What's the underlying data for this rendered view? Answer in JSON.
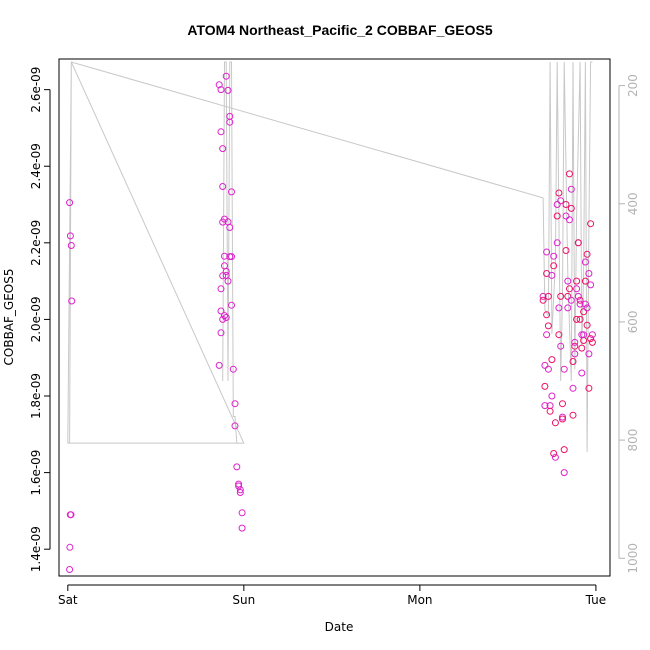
{
  "chart_data": {
    "type": "scatter",
    "title": "ATOM4 Northeast_Pacific_2 COBBAF_GEOS5",
    "xlabel": "Date",
    "ylabel": "COBBAF_GEOS5",
    "x_ticks": [
      {
        "label": "Sat",
        "day": 0
      },
      {
        "label": "Sun",
        "day": 1
      },
      {
        "label": "Mon",
        "day": 2
      },
      {
        "label": "Tue",
        "day": 3
      }
    ],
    "xlim_days": [
      -0.05,
      3.08
    ],
    "y_ticks": [
      {
        "label": "1.4e-09",
        "value": 1.4e-09
      },
      {
        "label": "1.6e-09",
        "value": 1.6e-09
      },
      {
        "label": "1.8e-09",
        "value": 1.8e-09
      },
      {
        "label": "2.0e-09",
        "value": 2e-09
      },
      {
        "label": "2.2e-09",
        "value": 2.2e-09
      },
      {
        "label": "2.4e-09",
        "value": 2.4e-09
      },
      {
        "label": "2.6e-09",
        "value": 2.6e-09
      }
    ],
    "ylim": [
      1.33e-09,
      2.68e-09
    ],
    "right_axis": {
      "ticks": [
        {
          "label": "200",
          "value": 200
        },
        {
          "label": "400",
          "value": 400
        },
        {
          "label": "600",
          "value": 600
        },
        {
          "label": "800",
          "value": 800
        },
        {
          "label": "1000",
          "value": 1000
        }
      ],
      "range": [
        155,
        1030
      ],
      "inverted": true,
      "color": "#b3b3b3"
    },
    "colors": {
      "points": "#dd22cc",
      "points_alt": "#ee1166",
      "pressure_line": "#c8c8c8"
    },
    "series": [
      {
        "kind": "points",
        "x": [
          0.01,
          0.015,
          0.02,
          0.022,
          0.018,
          0.012,
          0.01,
          0.014
        ],
        "y": [
          2.305e-09,
          2.218e-09,
          2.193e-09,
          2.048e-09,
          1.49e-09,
          1.405e-09,
          1.347e-09,
          1.49e-09
        ]
      },
      {
        "kind": "points",
        "x": [
          0.86,
          0.87,
          0.87,
          0.88,
          0.88,
          0.89,
          0.88,
          0.89,
          0.89,
          0.88,
          0.87,
          0.87,
          0.87,
          0.86,
          0.88,
          0.89,
          0.9,
          0.9,
          0.91,
          0.91,
          0.92,
          0.92,
          0.93,
          0.93,
          0.92,
          0.92,
          0.91,
          0.9,
          0.9,
          0.93,
          0.94,
          0.95,
          0.95,
          0.96,
          0.97,
          0.97,
          0.98,
          0.98,
          0.99,
          0.99
        ],
        "y": [
          2.613e-09,
          2.6e-09,
          2.49e-09,
          2.446e-09,
          2.347e-09,
          2.262e-09,
          2.254e-09,
          2.165e-09,
          2.14e-09,
          2.114e-09,
          2.08e-09,
          2.022e-09,
          1.965e-09,
          1.88e-09,
          2e-09,
          2.01e-09,
          2.005e-09,
          2.115e-09,
          2.1e-09,
          2.255e-09,
          2.24e-09,
          2.164e-09,
          2.164e-09,
          2.333e-09,
          2.53e-09,
          2.515e-09,
          2.598e-09,
          2.635e-09,
          2.125e-09,
          2.037e-09,
          1.87e-09,
          1.78e-09,
          1.722e-09,
          1.615e-09,
          1.57e-09,
          1.565e-09,
          1.555e-09,
          1.548e-09,
          1.495e-09,
          1.455e-09
        ]
      },
      {
        "kind": "points",
        "x": [
          2.7,
          2.7,
          2.71,
          2.71,
          2.71,
          2.72,
          2.72,
          2.72,
          2.72,
          2.73,
          2.73,
          2.73,
          2.74,
          2.74,
          2.75,
          2.75,
          2.75,
          2.76,
          2.76,
          2.76,
          2.77,
          2.77,
          2.78,
          2.78,
          2.78,
          2.79,
          2.79,
          2.79,
          2.8,
          2.8,
          2.8,
          2.81,
          2.81,
          2.81,
          2.82,
          2.82,
          2.82,
          2.83,
          2.83,
          2.83,
          2.84,
          2.84,
          2.84,
          2.85,
          2.85,
          2.85,
          2.86,
          2.86,
          2.86,
          2.87,
          2.87,
          2.87,
          2.88,
          2.88,
          2.88,
          2.89,
          2.89,
          2.89,
          2.9,
          2.9,
          2.9,
          2.91,
          2.91,
          2.91,
          2.92,
          2.92,
          2.92,
          2.93,
          2.93,
          2.93,
          2.94,
          2.94,
          2.94,
          2.95,
          2.95,
          2.95,
          2.96,
          2.96,
          2.96,
          2.97,
          2.97,
          2.97,
          2.98,
          2.98
        ],
        "y": [
          2.06e-09,
          2.05e-09,
          1.88e-09,
          1.825e-09,
          1.775e-09,
          2.012e-09,
          1.96e-09,
          2.12e-09,
          2.176e-09,
          1.983e-09,
          1.87e-09,
          2.06e-09,
          1.775e-09,
          1.76e-09,
          1.8e-09,
          1.895e-09,
          2.115e-09,
          2.14e-09,
          2.165e-09,
          1.65e-09,
          1.64e-09,
          1.73e-09,
          2.3e-09,
          2.27e-09,
          2.2e-09,
          1.96e-09,
          2.03e-09,
          2.33e-09,
          2.31e-09,
          2.06e-09,
          1.93e-09,
          1.78e-09,
          1.745e-09,
          1.74e-09,
          1.6e-09,
          1.66e-09,
          1.87e-09,
          2.18e-09,
          2.27e-09,
          2.3e-09,
          2.1e-09,
          2.06e-09,
          2.03e-09,
          2.08e-09,
          2.26e-09,
          2.38e-09,
          2.34e-09,
          2.29e-09,
          2.05e-09,
          1.89e-09,
          1.82e-09,
          1.75e-09,
          1.91e-09,
          1.93e-09,
          1.94e-09,
          2e-09,
          2.08e-09,
          2.1e-09,
          2.2e-09,
          2.2e-09,
          2.06e-09,
          2.05e-09,
          2.04e-09,
          2e-09,
          1.96e-09,
          1.925e-09,
          1.86e-09,
          1.945e-09,
          1.96e-09,
          2.02e-09,
          2.04e-09,
          2.1e-09,
          2.15e-09,
          2.17e-09,
          2.03e-09,
          1.985e-09,
          1.91e-09,
          1.82e-09,
          2.12e-09,
          2.25e-09,
          2.09e-09,
          1.95e-09,
          1.96e-09,
          1.94e-09
        ]
      }
    ],
    "pressure_line": {
      "axis": "right",
      "points": [
        [
          0.0,
          805
        ],
        [
          0.01,
          805
        ],
        [
          0.02,
          160
        ],
        [
          1.0,
          805
        ],
        [
          0.99,
          805
        ],
        [
          0.85,
          805
        ],
        [
          0.85,
          805
        ],
        [
          0.0,
          805
        ],
        [
          0.02,
          160
        ],
        [
          2.7,
          390
        ],
        [
          2.71,
          580
        ],
        [
          2.73,
          590
        ],
        [
          2.74,
          160
        ],
        [
          2.75,
          620
        ],
        [
          2.77,
          500
        ],
        [
          2.78,
          160
        ],
        [
          2.8,
          700
        ],
        [
          2.81,
          550
        ],
        [
          2.82,
          160
        ],
        [
          2.84,
          520
        ],
        [
          2.86,
          700
        ],
        [
          2.87,
          160
        ],
        [
          2.88,
          680
        ],
        [
          2.89,
          420
        ],
        [
          2.91,
          160
        ],
        [
          2.92,
          640
        ],
        [
          2.93,
          520
        ],
        [
          2.94,
          160
        ],
        [
          2.95,
          820
        ],
        [
          2.96,
          440
        ],
        [
          2.97,
          160
        ],
        [
          2.98,
          160
        ]
      ],
      "sun_spikes": [
        [
          0.88,
          700
        ],
        [
          0.89,
          160
        ],
        [
          0.9,
          160
        ],
        [
          0.91,
          700
        ],
        [
          0.92,
          160
        ],
        [
          0.93,
          160
        ],
        [
          0.94,
          760
        ],
        [
          0.95,
          760
        ],
        [
          0.96,
          805
        ]
      ]
    }
  }
}
